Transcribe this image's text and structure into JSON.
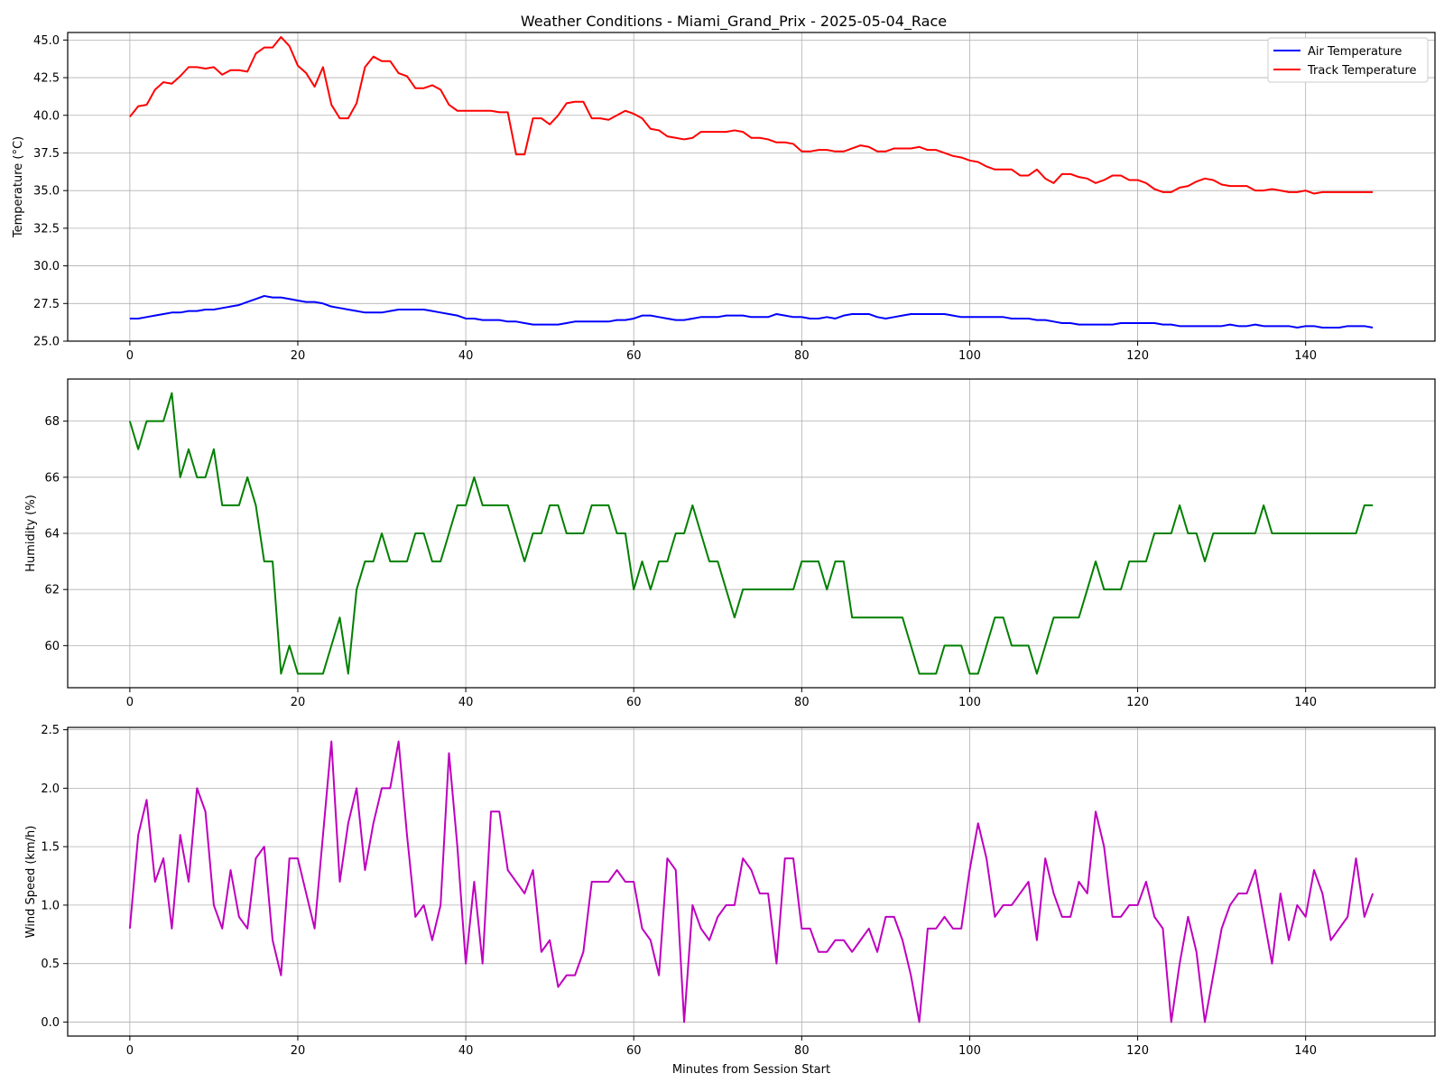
{
  "figure": {
    "title": "Weather Conditions - Miami_Grand_Prix - 2025-05-04_Race"
  },
  "chart_data": [
    {
      "type": "line",
      "id": "temperature",
      "title": "Weather Conditions - Miami_Grand_Prix - 2025-05-04_Race",
      "xlabel": "",
      "ylabel": "Temperature (°C)",
      "xlim": [
        -7.4,
        155.4
      ],
      "ylim": [
        25.0,
        45.5
      ],
      "xticks": [
        0,
        20,
        40,
        60,
        80,
        100,
        120,
        140
      ],
      "xtick_labels": [
        "0",
        "20",
        "40",
        "60",
        "80",
        "100",
        "120",
        "140"
      ],
      "yticks": [
        25.0,
        27.5,
        30.0,
        32.5,
        35.0,
        37.5,
        40.0,
        42.5,
        45.0
      ],
      "ytick_labels": [
        "25.0",
        "27.5",
        "30.0",
        "32.5",
        "35.0",
        "37.5",
        "40.0",
        "42.5",
        "45.0"
      ],
      "grid": true,
      "legend": "top-right",
      "x": [
        0,
        1,
        2,
        3,
        4,
        5,
        6,
        7,
        8,
        9,
        10,
        11,
        12,
        13,
        14,
        15,
        16,
        17,
        18,
        19,
        20,
        21,
        22,
        23,
        24,
        25,
        26,
        27,
        28,
        29,
        30,
        31,
        32,
        33,
        34,
        35,
        36,
        37,
        38,
        39,
        40,
        41,
        42,
        43,
        44,
        45,
        46,
        47,
        48,
        49,
        50,
        51,
        52,
        53,
        54,
        55,
        56,
        57,
        58,
        59,
        60,
        61,
        62,
        63,
        64,
        65,
        66,
        67,
        68,
        69,
        70,
        71,
        72,
        73,
        74,
        75,
        76,
        77,
        78,
        79,
        80,
        81,
        82,
        83,
        84,
        85,
        86,
        87,
        88,
        89,
        90,
        91,
        92,
        93,
        94,
        95,
        96,
        97,
        98,
        99,
        100,
        101,
        102,
        103,
        104,
        105,
        106,
        107,
        108,
        109,
        110,
        111,
        112,
        113,
        114,
        115,
        116,
        117,
        118,
        119,
        120,
        121,
        122,
        123,
        124,
        125,
        126,
        127,
        128,
        129,
        130,
        131,
        132,
        133,
        134,
        135,
        136,
        137,
        138,
        139,
        140,
        141,
        142,
        143,
        144,
        145,
        146,
        147,
        148
      ],
      "series": [
        {
          "name": "Air Temperature",
          "color": "#0000ff",
          "values": [
            26.5,
            26.5,
            26.6,
            26.7,
            26.8,
            26.9,
            26.9,
            27.0,
            27.0,
            27.1,
            27.1,
            27.2,
            27.3,
            27.4,
            27.6,
            27.8,
            28.0,
            27.9,
            27.9,
            27.8,
            27.7,
            27.6,
            27.6,
            27.5,
            27.3,
            27.2,
            27.1,
            27.0,
            26.9,
            26.9,
            26.9,
            27.0,
            27.1,
            27.1,
            27.1,
            27.1,
            27.0,
            26.9,
            26.8,
            26.7,
            26.5,
            26.5,
            26.4,
            26.4,
            26.4,
            26.3,
            26.3,
            26.2,
            26.1,
            26.1,
            26.1,
            26.1,
            26.2,
            26.3,
            26.3,
            26.3,
            26.3,
            26.3,
            26.4,
            26.4,
            26.5,
            26.7,
            26.7,
            26.6,
            26.5,
            26.4,
            26.4,
            26.5,
            26.6,
            26.6,
            26.6,
            26.7,
            26.7,
            26.7,
            26.6,
            26.6,
            26.6,
            26.8,
            26.7,
            26.6,
            26.6,
            26.5,
            26.5,
            26.6,
            26.5,
            26.7,
            26.8,
            26.8,
            26.8,
            26.6,
            26.5,
            26.6,
            26.7,
            26.8,
            26.8,
            26.8,
            26.8,
            26.8,
            26.7,
            26.6,
            26.6,
            26.6,
            26.6,
            26.6,
            26.6,
            26.5,
            26.5,
            26.5,
            26.4,
            26.4,
            26.3,
            26.2,
            26.2,
            26.1,
            26.1,
            26.1,
            26.1,
            26.1,
            26.2,
            26.2,
            26.2,
            26.2,
            26.2,
            26.1,
            26.1,
            26.0,
            26.0,
            26.0,
            26.0,
            26.0,
            26.0,
            26.1,
            26.0,
            26.0,
            26.1,
            26.0,
            26.0,
            26.0,
            26.0,
            25.9,
            26.0,
            26.0,
            25.9,
            25.9,
            25.9,
            26.0,
            26.0,
            26.0,
            25.9
          ]
        },
        {
          "name": "Track Temperature",
          "color": "#ff0000",
          "values": [
            39.9,
            40.6,
            40.7,
            41.7,
            42.2,
            42.1,
            42.6,
            43.2,
            43.2,
            43.1,
            43.2,
            42.7,
            43.0,
            43.0,
            42.9,
            44.1,
            44.5,
            44.5,
            45.2,
            44.6,
            43.3,
            42.8,
            41.9,
            43.2,
            40.7,
            39.8,
            39.8,
            40.8,
            43.2,
            43.9,
            43.6,
            43.6,
            42.8,
            42.6,
            41.8,
            41.8,
            42.0,
            41.7,
            40.7,
            40.3,
            40.3,
            40.3,
            40.3,
            40.3,
            40.2,
            40.2,
            37.4,
            37.4,
            39.8,
            39.8,
            39.4,
            40.0,
            40.8,
            40.9,
            40.9,
            39.8,
            39.8,
            39.7,
            40.0,
            40.3,
            40.1,
            39.8,
            39.1,
            39.0,
            38.6,
            38.5,
            38.4,
            38.5,
            38.9,
            38.9,
            38.9,
            38.9,
            39.0,
            38.9,
            38.5,
            38.5,
            38.4,
            38.2,
            38.2,
            38.1,
            37.6,
            37.6,
            37.7,
            37.7,
            37.6,
            37.6,
            37.8,
            38.0,
            37.9,
            37.6,
            37.6,
            37.8,
            37.8,
            37.8,
            37.9,
            37.7,
            37.7,
            37.5,
            37.3,
            37.2,
            37.0,
            36.9,
            36.6,
            36.4,
            36.4,
            36.4,
            36.0,
            36.0,
            36.4,
            35.8,
            35.5,
            36.1,
            36.1,
            35.9,
            35.8,
            35.5,
            35.7,
            36.0,
            36.0,
            35.7,
            35.7,
            35.5,
            35.1,
            34.9,
            34.9,
            35.2,
            35.3,
            35.6,
            35.8,
            35.7,
            35.4,
            35.3,
            35.3,
            35.3,
            35.0,
            35.0,
            35.1,
            35.0,
            34.9,
            34.9,
            35.0,
            34.8,
            34.9,
            34.9,
            34.9,
            34.9,
            34.9,
            34.9,
            34.9
          ]
        }
      ]
    },
    {
      "type": "line",
      "id": "humidity",
      "title": "",
      "xlabel": "",
      "ylabel": "Humidity (%)",
      "xlim": [
        -7.4,
        155.4
      ],
      "ylim": [
        58.5,
        69.5
      ],
      "xticks": [
        0,
        20,
        40,
        60,
        80,
        100,
        120,
        140
      ],
      "xtick_labels": [
        "0",
        "20",
        "40",
        "60",
        "80",
        "100",
        "120",
        "140"
      ],
      "yticks": [
        60,
        62,
        64,
        66,
        68
      ],
      "ytick_labels": [
        "60",
        "62",
        "64",
        "66",
        "68"
      ],
      "grid": true,
      "x": [
        0,
        1,
        2,
        3,
        4,
        5,
        6,
        7,
        8,
        9,
        10,
        11,
        12,
        13,
        14,
        15,
        16,
        17,
        18,
        19,
        20,
        21,
        22,
        23,
        24,
        25,
        26,
        27,
        28,
        29,
        30,
        31,
        32,
        33,
        34,
        35,
        36,
        37,
        38,
        39,
        40,
        41,
        42,
        43,
        44,
        45,
        46,
        47,
        48,
        49,
        50,
        51,
        52,
        53,
        54,
        55,
        56,
        57,
        58,
        59,
        60,
        61,
        62,
        63,
        64,
        65,
        66,
        67,
        68,
        69,
        70,
        71,
        72,
        73,
        74,
        75,
        76,
        77,
        78,
        79,
        80,
        81,
        82,
        83,
        84,
        85,
        86,
        87,
        88,
        89,
        90,
        91,
        92,
        93,
        94,
        95,
        96,
        97,
        98,
        99,
        100,
        101,
        102,
        103,
        104,
        105,
        106,
        107,
        108,
        109,
        110,
        111,
        112,
        113,
        114,
        115,
        116,
        117,
        118,
        119,
        120,
        121,
        122,
        123,
        124,
        125,
        126,
        127,
        128,
        129,
        130,
        131,
        132,
        133,
        134,
        135,
        136,
        137,
        138,
        139,
        140,
        141,
        142,
        143,
        144,
        145,
        146,
        147,
        148
      ],
      "series": [
        {
          "color": "#008000",
          "values": [
            68,
            67,
            68,
            68,
            68,
            69,
            66,
            67,
            66,
            66,
            67,
            65,
            65,
            65,
            66,
            65,
            63,
            63,
            59,
            60,
            59,
            59,
            59,
            59,
            60,
            61,
            59,
            62,
            63,
            63,
            64,
            63,
            63,
            63,
            64,
            64,
            63,
            63,
            64,
            65,
            65,
            66,
            65,
            65,
            65,
            65,
            64,
            63,
            64,
            64,
            65,
            65,
            64,
            64,
            64,
            65,
            65,
            65,
            64,
            64,
            62,
            63,
            62,
            63,
            63,
            64,
            64,
            65,
            64,
            63,
            63,
            62,
            61,
            62,
            62,
            62,
            62,
            62,
            62,
            62,
            63,
            63,
            63,
            62,
            63,
            63,
            61,
            61,
            61,
            61,
            61,
            61,
            61,
            60,
            59,
            59,
            59,
            60,
            60,
            60,
            59,
            59,
            60,
            61,
            61,
            60,
            60,
            60,
            59,
            60,
            61,
            61,
            61,
            61,
            62,
            63,
            62,
            62,
            62,
            63,
            63,
            63,
            64,
            64,
            64,
            65,
            64,
            64,
            63,
            64,
            64,
            64,
            64,
            64,
            64,
            65,
            64,
            64,
            64,
            64,
            64,
            64,
            64,
            64,
            64,
            64,
            64,
            65,
            65
          ]
        }
      ]
    },
    {
      "type": "line",
      "id": "wind",
      "title": "",
      "xlabel": "Minutes from Session Start",
      "ylabel": "Wind Speed (km/h)",
      "xlim": [
        -7.4,
        155.4
      ],
      "ylim": [
        -0.12,
        2.52
      ],
      "xticks": [
        0,
        20,
        40,
        60,
        80,
        100,
        120,
        140
      ],
      "xtick_labels": [
        "0",
        "20",
        "40",
        "60",
        "80",
        "100",
        "120",
        "140"
      ],
      "yticks": [
        0.0,
        0.5,
        1.0,
        1.5,
        2.0,
        2.5
      ],
      "ytick_labels": [
        "0.0",
        "0.5",
        "1.0",
        "1.5",
        "2.0",
        "2.5"
      ],
      "grid": true,
      "x": [
        0,
        1,
        2,
        3,
        4,
        5,
        6,
        7,
        8,
        9,
        10,
        11,
        12,
        13,
        14,
        15,
        16,
        17,
        18,
        19,
        20,
        21,
        22,
        23,
        24,
        25,
        26,
        27,
        28,
        29,
        30,
        31,
        32,
        33,
        34,
        35,
        36,
        37,
        38,
        39,
        40,
        41,
        42,
        43,
        44,
        45,
        46,
        47,
        48,
        49,
        50,
        51,
        52,
        53,
        54,
        55,
        56,
        57,
        58,
        59,
        60,
        61,
        62,
        63,
        64,
        65,
        66,
        67,
        68,
        69,
        70,
        71,
        72,
        73,
        74,
        75,
        76,
        77,
        78,
        79,
        80,
        81,
        82,
        83,
        84,
        85,
        86,
        87,
        88,
        89,
        90,
        91,
        92,
        93,
        94,
        95,
        96,
        97,
        98,
        99,
        100,
        101,
        102,
        103,
        104,
        105,
        106,
        107,
        108,
        109,
        110,
        111,
        112,
        113,
        114,
        115,
        116,
        117,
        118,
        119,
        120,
        121,
        122,
        123,
        124,
        125,
        126,
        127,
        128,
        129,
        130,
        131,
        132,
        133,
        134,
        135,
        136,
        137,
        138,
        139,
        140,
        141,
        142,
        143,
        144,
        145,
        146,
        147,
        148
      ],
      "series": [
        {
          "color": "#bf00bf",
          "values": [
            0.8,
            1.6,
            1.9,
            1.2,
            1.4,
            0.8,
            1.6,
            1.2,
            2.0,
            1.8,
            1.0,
            0.8,
            1.3,
            0.9,
            0.8,
            1.4,
            1.5,
            0.7,
            0.4,
            1.4,
            1.4,
            1.1,
            0.8,
            1.6,
            2.4,
            1.2,
            1.7,
            2.0,
            1.3,
            1.7,
            2.0,
            2.0,
            2.4,
            1.6,
            0.9,
            1.0,
            0.7,
            1.0,
            2.3,
            1.5,
            0.5,
            1.2,
            0.5,
            1.8,
            1.8,
            1.3,
            1.2,
            1.1,
            1.3,
            0.6,
            0.7,
            0.3,
            0.4,
            0.4,
            0.6,
            1.2,
            1.2,
            1.2,
            1.3,
            1.2,
            1.2,
            0.8,
            0.7,
            0.4,
            1.4,
            1.3,
            0.0,
            1.0,
            0.8,
            0.7,
            0.9,
            1.0,
            1.0,
            1.4,
            1.3,
            1.1,
            1.1,
            0.5,
            1.4,
            1.4,
            0.8,
            0.8,
            0.6,
            0.6,
            0.7,
            0.7,
            0.6,
            0.7,
            0.8,
            0.6,
            0.9,
            0.9,
            0.7,
            0.4,
            0.0,
            0.8,
            0.8,
            0.9,
            0.8,
            0.8,
            1.3,
            1.7,
            1.4,
            0.9,
            1.0,
            1.0,
            1.1,
            1.2,
            0.7,
            1.4,
            1.1,
            0.9,
            0.9,
            1.2,
            1.1,
            1.8,
            1.5,
            0.9,
            0.9,
            1.0,
            1.0,
            1.2,
            0.9,
            0.8,
            0.0,
            0.5,
            0.9,
            0.6,
            0.0,
            0.4,
            0.8,
            1.0,
            1.1,
            1.1,
            1.3,
            0.9,
            0.5,
            1.1,
            0.7,
            1.0,
            0.9,
            1.3,
            1.1,
            0.7,
            0.8,
            0.9,
            1.4,
            0.9,
            1.1
          ]
        }
      ]
    }
  ]
}
